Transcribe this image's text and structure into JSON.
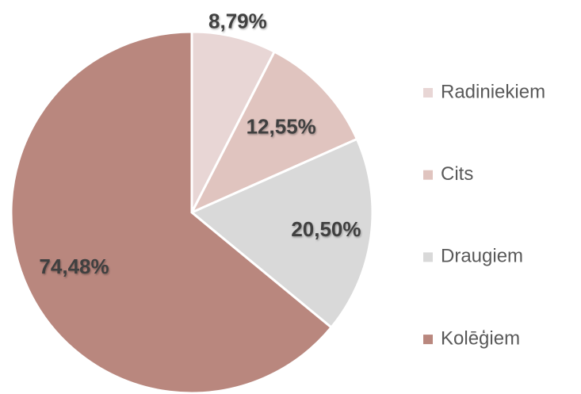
{
  "chart_data": {
    "type": "pie",
    "categories": [
      "Radiniekiem",
      "Cits",
      "Draugiem",
      "Kolēģiem"
    ],
    "values": [
      8.79,
      12.55,
      20.5,
      74.48
    ],
    "value_labels": [
      "8,79%",
      "12,55%",
      "20,50%",
      "74,48%"
    ],
    "colors": [
      "#e8d6d5",
      "#e0c4bf",
      "#d9d9d9",
      "#b9877e"
    ],
    "legend": "right"
  }
}
